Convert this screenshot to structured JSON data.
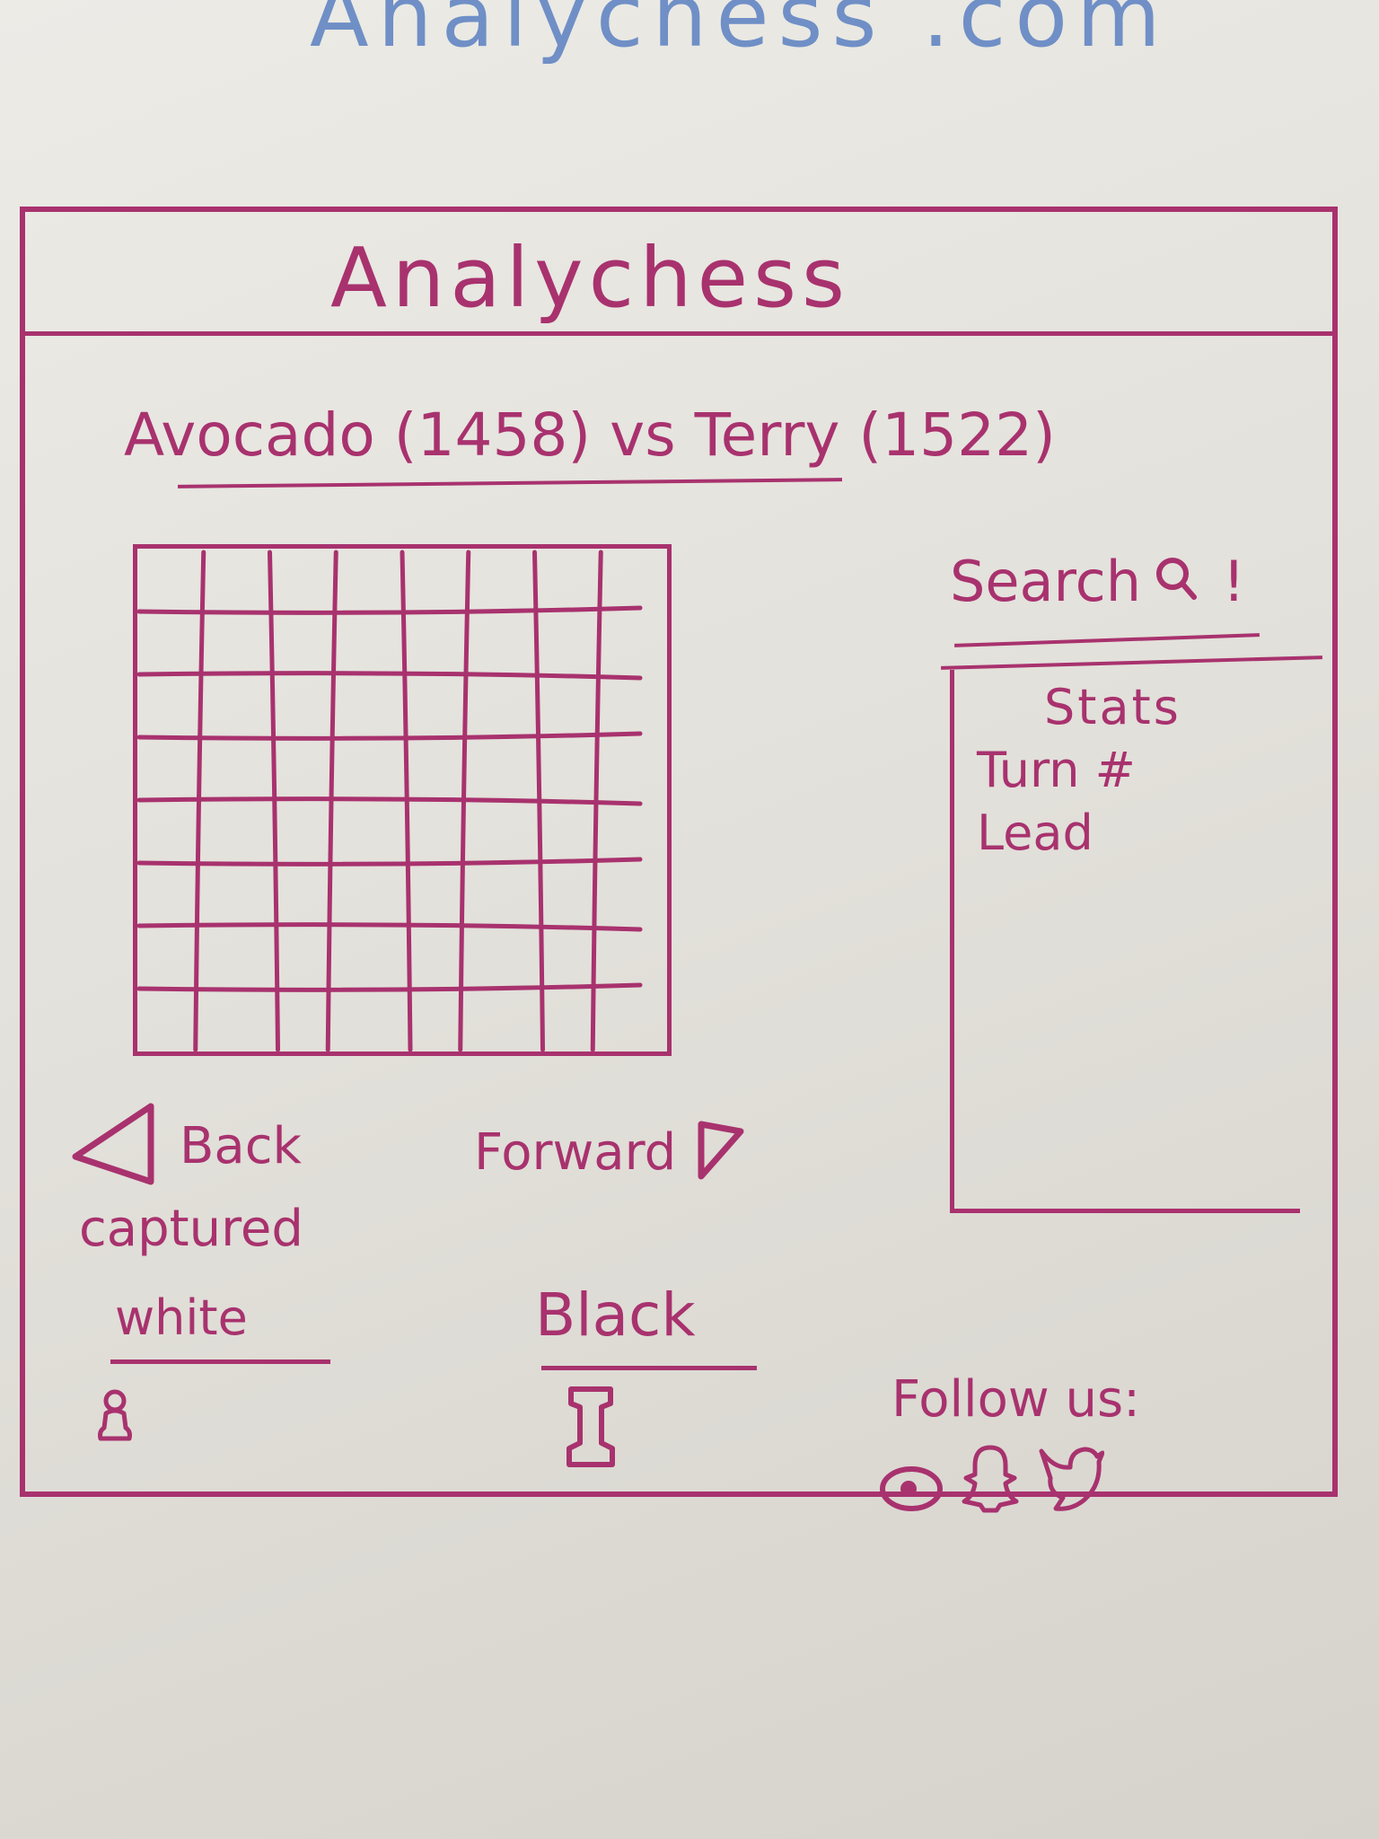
{
  "site_url": "Analychess .com",
  "header": {
    "title": "Analychess"
  },
  "match": {
    "title": "Avocado (1458) vs Terry (1522)"
  },
  "board": {
    "rows": 8,
    "cols": 8
  },
  "search": {
    "label": "Search",
    "icon": "search-icon",
    "suffix": "!"
  },
  "stats": {
    "heading": "Stats",
    "turn_label": "Turn #",
    "lead_label": "Lead"
  },
  "navigation": {
    "back_label": "Back",
    "forward_label": "Forward"
  },
  "captured": {
    "label": "captured",
    "white_label": "white",
    "black_label": "Black",
    "white_icon": "pawn-icon",
    "black_icon": "rook-icon"
  },
  "footer": {
    "follow_label": "Follow us:",
    "social_icons": [
      "instagram-icon",
      "snapchat-icon",
      "twitter-icon"
    ]
  },
  "colors": {
    "marker": "#a8326e",
    "blue_marker": "#6f8fc6",
    "whiteboard": "#e6e4df"
  }
}
